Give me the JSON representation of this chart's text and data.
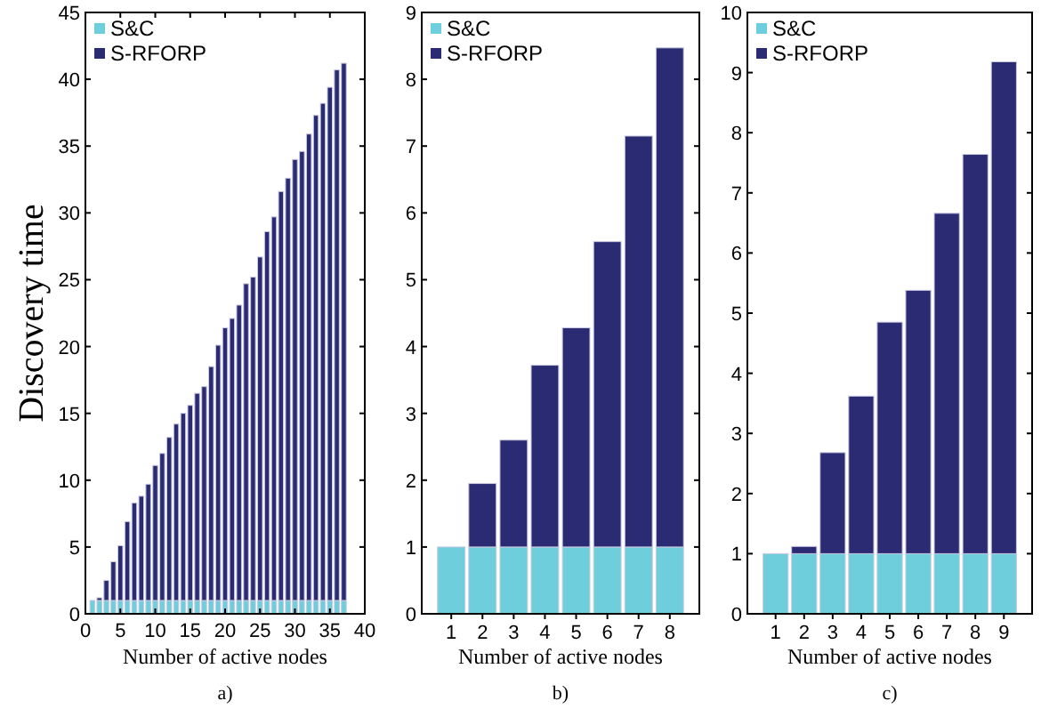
{
  "chart_data": [
    {
      "type": "bar",
      "stacked": true,
      "xlabel": "Number of active nodes",
      "ylabel": "Discovery time",
      "annotations": [
        "a)"
      ],
      "legend": "top left",
      "x": [
        1,
        2,
        3,
        4,
        5,
        6,
        7,
        8,
        9,
        10,
        11,
        12,
        13,
        14,
        15,
        16,
        17,
        18,
        19,
        20,
        21,
        22,
        23,
        24,
        25,
        26,
        27,
        28,
        29,
        30,
        31,
        32,
        33,
        34,
        35,
        36,
        37
      ],
      "xlim": [
        0,
        40
      ],
      "xticks": [
        0,
        5,
        10,
        15,
        20,
        25,
        30,
        35,
        40
      ],
      "ylim": [
        0,
        45
      ],
      "yticks": [
        0,
        5,
        10,
        15,
        20,
        25,
        30,
        35,
        40,
        45
      ],
      "series": [
        {
          "name": "S&C",
          "color": "#6ecedb",
          "values": [
            1,
            1,
            1,
            1,
            1,
            1,
            1,
            1,
            1,
            1,
            1,
            1,
            1,
            1,
            1,
            1,
            1,
            1,
            1,
            1,
            1,
            1,
            1,
            1,
            1,
            1,
            1,
            1,
            1,
            1,
            1,
            1,
            1,
            1,
            1,
            1,
            1
          ]
        },
        {
          "name": "S-RFORP",
          "color": "#2b2b73",
          "values": [
            0,
            0.2,
            1.5,
            2.9,
            4.1,
            5.9,
            7.3,
            7.8,
            8.7,
            10.1,
            11,
            12.2,
            13.2,
            14,
            14.6,
            15.5,
            16,
            17.5,
            19.1,
            20.4,
            21.1,
            22.1,
            23.7,
            24.2,
            25.7,
            27.6,
            28.7,
            30.6,
            31.6,
            33,
            33.6,
            34.9,
            36.3,
            37.2,
            38.4,
            39.7,
            40.2
          ]
        }
      ]
    },
    {
      "type": "bar",
      "stacked": true,
      "xlabel": "Number of active nodes",
      "annotations": [
        "b)"
      ],
      "legend": "top left",
      "categories": [
        "1",
        "2",
        "3",
        "4",
        "5",
        "6",
        "7",
        "8"
      ],
      "ylim": [
        0,
        9
      ],
      "yticks": [
        0,
        1,
        2,
        3,
        4,
        5,
        6,
        7,
        8,
        9
      ],
      "series": [
        {
          "name": "S&C",
          "color": "#6ecedb",
          "values": [
            1,
            1,
            1,
            1,
            1,
            1,
            1,
            1
          ]
        },
        {
          "name": "S-RFORP",
          "color": "#2b2b73",
          "values": [
            0,
            0.95,
            1.6,
            2.72,
            3.28,
            4.57,
            6.15,
            7.47
          ]
        }
      ]
    },
    {
      "type": "bar",
      "stacked": true,
      "xlabel": "Number of active nodes",
      "annotations": [
        "c)"
      ],
      "legend": "top left",
      "categories": [
        "1",
        "2",
        "3",
        "4",
        "5",
        "6",
        "7",
        "8",
        "9"
      ],
      "ylim": [
        0,
        10
      ],
      "yticks": [
        0,
        1,
        2,
        3,
        4,
        5,
        6,
        7,
        8,
        9,
        10
      ],
      "series": [
        {
          "name": "S&C",
          "color": "#6ecedb",
          "values": [
            1,
            1,
            1,
            1,
            1,
            1,
            1,
            1,
            1
          ]
        },
        {
          "name": "S-RFORP",
          "color": "#2b2b73",
          "values": [
            0,
            0.12,
            1.68,
            2.62,
            3.85,
            4.38,
            5.66,
            6.64,
            8.18
          ]
        }
      ]
    }
  ]
}
